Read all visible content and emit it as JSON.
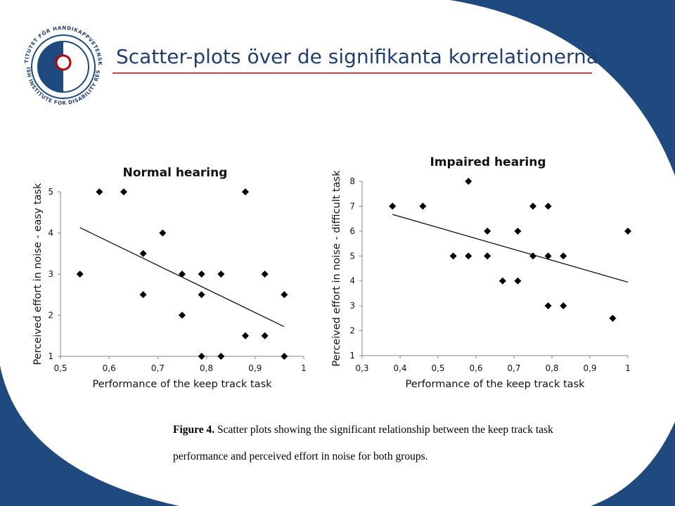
{
  "slide": {
    "title": "Scatter-plots över de signifikanta korrelationerna",
    "colors": {
      "brand": "#1f4a80",
      "text": "#111111",
      "accent": "#c00000"
    }
  },
  "logo": {
    "text_top": "INSTITUTET FÖR HANDIKAPPVETENSKAP",
    "text_bottom": "SWEDISH INSTITUTE FOR DISABILITY RESEARCH"
  },
  "caption": {
    "label": "Figure 4.",
    "line1": " Scatter plots showing the significant relationship between the keep track task",
    "line2": "performance and perceived effort in noise for both groups."
  },
  "chart_data": [
    {
      "type": "scatter",
      "title": "Normal hearing",
      "xlabel": "Performance of the keep track task",
      "ylabel": "Perceived effort in noise - easy task",
      "xlim": [
        0.5,
        1
      ],
      "ylim": [
        1,
        5
      ],
      "xticks": [
        "0,5",
        "0,6",
        "0,7",
        "0,8",
        "0,9",
        "1"
      ],
      "yticks": [
        "1",
        "2",
        "3",
        "4",
        "5"
      ],
      "trendline": [
        [
          0.54,
          4.13
        ],
        [
          0.96,
          1.72
        ]
      ],
      "points": [
        [
          0.54,
          3
        ],
        [
          0.58,
          5
        ],
        [
          0.63,
          5
        ],
        [
          0.67,
          3.5
        ],
        [
          0.67,
          2.5
        ],
        [
          0.71,
          4
        ],
        [
          0.75,
          3
        ],
        [
          0.75,
          2
        ],
        [
          0.79,
          3
        ],
        [
          0.79,
          2.5
        ],
        [
          0.79,
          1
        ],
        [
          0.83,
          3
        ],
        [
          0.83,
          1
        ],
        [
          0.88,
          5
        ],
        [
          0.88,
          1.5
        ],
        [
          0.92,
          3
        ],
        [
          0.92,
          1.5
        ],
        [
          0.96,
          2.5
        ],
        [
          0.96,
          1
        ]
      ]
    },
    {
      "type": "scatter",
      "title": "Impaired hearing",
      "xlabel": "Performance of the keep track task",
      "ylabel": "Perceived effort in noise - difficult task",
      "xlim": [
        0.3,
        1
      ],
      "ylim": [
        1,
        8
      ],
      "xticks": [
        "0,3",
        "0,4",
        "0,5",
        "0,6",
        "0,7",
        "0,8",
        "0,9",
        "1"
      ],
      "yticks": [
        "1",
        "2",
        "3",
        "4",
        "5",
        "6",
        "7",
        "8"
      ],
      "trendline": [
        [
          0.38,
          6.67
        ],
        [
          1.0,
          3.95
        ]
      ],
      "points": [
        [
          0.38,
          7
        ],
        [
          0.46,
          7
        ],
        [
          0.54,
          5
        ],
        [
          0.58,
          8
        ],
        [
          0.58,
          5
        ],
        [
          0.63,
          6
        ],
        [
          0.63,
          5
        ],
        [
          0.67,
          4
        ],
        [
          0.71,
          6
        ],
        [
          0.71,
          4
        ],
        [
          0.75,
          7
        ],
        [
          0.75,
          5
        ],
        [
          0.79,
          7
        ],
        [
          0.79,
          5
        ],
        [
          0.79,
          3
        ],
        [
          0.83,
          5
        ],
        [
          0.83,
          3
        ],
        [
          0.96,
          2.5
        ],
        [
          1.0,
          6
        ]
      ]
    }
  ]
}
